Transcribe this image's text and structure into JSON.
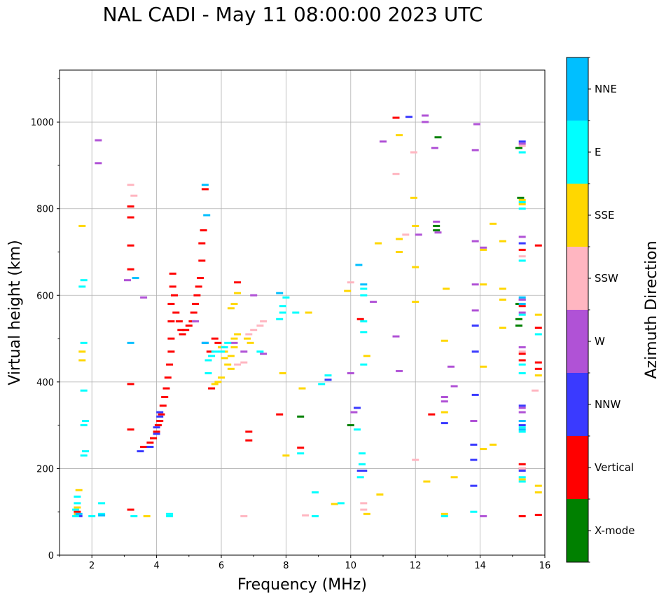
{
  "title": "NAL CADI - May 11 08:00:00 2023 UTC",
  "chart_data": {
    "type": "scatter",
    "title": "NAL CADI - May 11 08:00:00 2023 UTC",
    "xlabel": "Frequency (MHz)",
    "ylabel": "Virtual height (km)",
    "xlim": [
      1,
      16
    ],
    "ylim": [
      0,
      1120
    ],
    "xticks": [
      2,
      4,
      6,
      8,
      10,
      12,
      14,
      16
    ],
    "yticks": [
      0,
      200,
      400,
      600,
      800,
      1000
    ],
    "grid": true,
    "colorbar": {
      "label": "Azimuth Direction",
      "categories": [
        {
          "name": "X-mode",
          "color": "#008000"
        },
        {
          "name": "Vertical",
          "color": "#ff0000"
        },
        {
          "name": "NNW",
          "color": "#3a3aff"
        },
        {
          "name": "W",
          "color": "#b052d6"
        },
        {
          "name": "SSW",
          "color": "#ffb6c1"
        },
        {
          "name": "SSE",
          "color": "#ffd700"
        },
        {
          "name": "E",
          "color": "#00ffff"
        },
        {
          "name": "NNE",
          "color": "#00bfff"
        }
      ]
    },
    "series": [
      {
        "name": "X-mode",
        "points": [
          [
            8.45,
            320
          ],
          [
            10.0,
            300
          ],
          [
            12.65,
            760
          ],
          [
            12.65,
            750
          ],
          [
            12.7,
            965
          ],
          [
            15.2,
            530
          ],
          [
            15.2,
            545
          ],
          [
            15.2,
            940
          ],
          [
            15.25,
            825
          ],
          [
            15.2,
            580
          ]
        ]
      },
      {
        "name": "Vertical",
        "points": [
          [
            1.55,
            100
          ],
          [
            3.2,
            105
          ],
          [
            3.2,
            290
          ],
          [
            3.2,
            395
          ],
          [
            3.2,
            660
          ],
          [
            3.2,
            715
          ],
          [
            3.2,
            780
          ],
          [
            3.2,
            805
          ],
          [
            3.6,
            250
          ],
          [
            3.8,
            260
          ],
          [
            3.9,
            270
          ],
          [
            4.0,
            285
          ],
          [
            4.05,
            300
          ],
          [
            4.1,
            310
          ],
          [
            4.15,
            325
          ],
          [
            4.2,
            345
          ],
          [
            4.25,
            365
          ],
          [
            4.3,
            385
          ],
          [
            4.35,
            410
          ],
          [
            4.4,
            440
          ],
          [
            4.45,
            470
          ],
          [
            4.45,
            500
          ],
          [
            4.45,
            540
          ],
          [
            4.45,
            580
          ],
          [
            4.5,
            620
          ],
          [
            4.5,
            650
          ],
          [
            4.55,
            600
          ],
          [
            4.6,
            560
          ],
          [
            4.7,
            540
          ],
          [
            4.75,
            520
          ],
          [
            4.8,
            510
          ],
          [
            4.9,
            520
          ],
          [
            5.0,
            530
          ],
          [
            5.1,
            540
          ],
          [
            5.15,
            560
          ],
          [
            5.2,
            580
          ],
          [
            5.25,
            600
          ],
          [
            5.3,
            620
          ],
          [
            5.35,
            640
          ],
          [
            5.4,
            680
          ],
          [
            5.4,
            720
          ],
          [
            5.45,
            750
          ],
          [
            5.5,
            845
          ],
          [
            5.65,
            470
          ],
          [
            5.7,
            385
          ],
          [
            5.8,
            500
          ],
          [
            5.9,
            490
          ],
          [
            6.0,
            480
          ],
          [
            6.5,
            630
          ],
          [
            6.85,
            285
          ],
          [
            6.85,
            265
          ],
          [
            7.8,
            325
          ],
          [
            8.45,
            248
          ],
          [
            10.3,
            545
          ],
          [
            11.4,
            1010
          ],
          [
            12.5,
            325
          ],
          [
            15.3,
            90
          ],
          [
            15.3,
            200
          ],
          [
            15.3,
            210
          ],
          [
            15.3,
            575
          ],
          [
            15.3,
            705
          ],
          [
            15.3,
            465
          ],
          [
            15.3,
            450
          ],
          [
            15.8,
            93
          ],
          [
            15.8,
            430
          ],
          [
            15.8,
            445
          ],
          [
            15.8,
            525
          ],
          [
            15.8,
            715
          ]
        ]
      },
      {
        "name": "NNW",
        "points": [
          [
            1.6,
            90
          ],
          [
            3.5,
            240
          ],
          [
            3.8,
            250
          ],
          [
            4.0,
            280
          ],
          [
            4.0,
            295
          ],
          [
            4.1,
            320
          ],
          [
            4.1,
            330
          ],
          [
            5.5,
            490
          ],
          [
            9.3,
            405
          ],
          [
            10.2,
            340
          ],
          [
            10.3,
            195
          ],
          [
            10.4,
            195
          ],
          [
            11.8,
            1012
          ],
          [
            12.9,
            305
          ],
          [
            13.8,
            160
          ],
          [
            13.8,
            220
          ],
          [
            13.8,
            255
          ],
          [
            13.85,
            470
          ],
          [
            13.85,
            530
          ],
          [
            13.85,
            370
          ],
          [
            15.3,
            300
          ],
          [
            15.3,
            345
          ],
          [
            15.3,
            590
          ],
          [
            15.3,
            720
          ],
          [
            15.3,
            955
          ],
          [
            15.3,
            195
          ]
        ]
      },
      {
        "name": "W",
        "points": [
          [
            2.2,
            905
          ],
          [
            2.2,
            958
          ],
          [
            3.1,
            635
          ],
          [
            3.6,
            595
          ],
          [
            5.2,
            540
          ],
          [
            6.4,
            490
          ],
          [
            6.7,
            470
          ],
          [
            7.0,
            600
          ],
          [
            7.3,
            465
          ],
          [
            10.0,
            420
          ],
          [
            10.1,
            330
          ],
          [
            10.7,
            585
          ],
          [
            11.0,
            955
          ],
          [
            11.4,
            505
          ],
          [
            11.5,
            425
          ],
          [
            12.1,
            740
          ],
          [
            12.3,
            1000
          ],
          [
            12.3,
            1015
          ],
          [
            12.6,
            940
          ],
          [
            12.65,
            770
          ],
          [
            12.7,
            745
          ],
          [
            13.1,
            435
          ],
          [
            13.2,
            390
          ],
          [
            12.9,
            355
          ],
          [
            12.9,
            365
          ],
          [
            13.8,
            310
          ],
          [
            13.85,
            625
          ],
          [
            13.85,
            565
          ],
          [
            13.85,
            725
          ],
          [
            13.85,
            935
          ],
          [
            13.9,
            995
          ],
          [
            14.1,
            710
          ],
          [
            14.1,
            90
          ],
          [
            15.3,
            330
          ],
          [
            15.3,
            340
          ],
          [
            15.3,
            560
          ],
          [
            15.3,
            735
          ],
          [
            15.3,
            480
          ],
          [
            15.3,
            950
          ],
          [
            15.3,
            590
          ]
        ]
      },
      {
        "name": "SSW",
        "points": [
          [
            3.2,
            855
          ],
          [
            3.3,
            830
          ],
          [
            6.5,
            440
          ],
          [
            6.7,
            445
          ],
          [
            6.85,
            510
          ],
          [
            7.0,
            520
          ],
          [
            7.2,
            530
          ],
          [
            7.3,
            540
          ],
          [
            6.7,
            90
          ],
          [
            8.6,
            92
          ],
          [
            10.0,
            630
          ],
          [
            10.4,
            105
          ],
          [
            10.4,
            120
          ],
          [
            11.4,
            880
          ],
          [
            11.7,
            740
          ],
          [
            11.95,
            930
          ],
          [
            12.0,
            220
          ],
          [
            15.3,
            200
          ],
          [
            15.3,
            690
          ],
          [
            15.3,
            945
          ],
          [
            15.3,
            470
          ],
          [
            15.7,
            380
          ]
        ]
      },
      {
        "name": "SSE",
        "points": [
          [
            1.55,
            95
          ],
          [
            1.55,
            110
          ],
          [
            1.6,
            150
          ],
          [
            1.7,
            760
          ],
          [
            1.7,
            470
          ],
          [
            1.7,
            450
          ],
          [
            3.7,
            90
          ],
          [
            6.0,
            480
          ],
          [
            6.1,
            470
          ],
          [
            6.1,
            455
          ],
          [
            6.2,
            440
          ],
          [
            6.3,
            430
          ],
          [
            6.3,
            460
          ],
          [
            6.4,
            480
          ],
          [
            6.4,
            500
          ],
          [
            6.5,
            510
          ],
          [
            6.0,
            410
          ],
          [
            5.9,
            400
          ],
          [
            5.8,
            395
          ],
          [
            6.3,
            570
          ],
          [
            6.4,
            580
          ],
          [
            6.5,
            605
          ],
          [
            6.8,
            500
          ],
          [
            6.9,
            490
          ],
          [
            7.9,
            420
          ],
          [
            8.0,
            230
          ],
          [
            8.5,
            385
          ],
          [
            8.7,
            560
          ],
          [
            9.5,
            118
          ],
          [
            9.9,
            610
          ],
          [
            10.5,
            95
          ],
          [
            10.5,
            460
          ],
          [
            10.85,
            720
          ],
          [
            10.9,
            140
          ],
          [
            11.5,
            700
          ],
          [
            11.5,
            730
          ],
          [
            11.5,
            970
          ],
          [
            11.95,
            825
          ],
          [
            12.0,
            760
          ],
          [
            12.0,
            665
          ],
          [
            12.0,
            585
          ],
          [
            12.35,
            170
          ],
          [
            12.9,
            95
          ],
          [
            12.9,
            330
          ],
          [
            12.9,
            495
          ],
          [
            12.95,
            615
          ],
          [
            13.2,
            180
          ],
          [
            14.1,
            245
          ],
          [
            14.1,
            435
          ],
          [
            14.1,
            625
          ],
          [
            14.1,
            705
          ],
          [
            14.4,
            255
          ],
          [
            14.4,
            765
          ],
          [
            14.7,
            525
          ],
          [
            14.7,
            590
          ],
          [
            14.7,
            615
          ],
          [
            14.7,
            725
          ],
          [
            15.3,
            810
          ],
          [
            15.3,
            820
          ],
          [
            15.3,
            175
          ],
          [
            15.8,
            145
          ],
          [
            15.8,
            160
          ],
          [
            15.8,
            415
          ],
          [
            15.8,
            555
          ]
        ]
      },
      {
        "name": "E",
        "points": [
          [
            1.5,
            90
          ],
          [
            1.5,
            105
          ],
          [
            1.55,
            120
          ],
          [
            1.55,
            135
          ],
          [
            1.75,
            230
          ],
          [
            1.8,
            240
          ],
          [
            1.75,
            300
          ],
          [
            1.8,
            310
          ],
          [
            1.75,
            380
          ],
          [
            1.75,
            490
          ],
          [
            1.7,
            620
          ],
          [
            1.75,
            635
          ],
          [
            2.0,
            90
          ],
          [
            2.3,
            95
          ],
          [
            2.3,
            120
          ],
          [
            3.3,
            90
          ],
          [
            4.4,
            90
          ],
          [
            4.4,
            95
          ],
          [
            5.6,
            420
          ],
          [
            5.6,
            450
          ],
          [
            5.7,
            460
          ],
          [
            5.8,
            470
          ],
          [
            6.0,
            470
          ],
          [
            6.1,
            480
          ],
          [
            6.2,
            490
          ],
          [
            7.2,
            470
          ],
          [
            7.8,
            545
          ],
          [
            7.9,
            560
          ],
          [
            7.9,
            575
          ],
          [
            8.0,
            595
          ],
          [
            8.3,
            560
          ],
          [
            8.45,
            235
          ],
          [
            8.9,
            90
          ],
          [
            8.9,
            145
          ],
          [
            9.1,
            395
          ],
          [
            9.3,
            415
          ],
          [
            9.7,
            120
          ],
          [
            10.2,
            290
          ],
          [
            10.3,
            180
          ],
          [
            10.35,
            210
          ],
          [
            10.35,
            235
          ],
          [
            10.4,
            440
          ],
          [
            10.4,
            515
          ],
          [
            10.4,
            540
          ],
          [
            10.4,
            600
          ],
          [
            10.4,
            615
          ],
          [
            12.9,
            90
          ],
          [
            13.8,
            100
          ],
          [
            15.3,
            170
          ],
          [
            15.3,
            180
          ],
          [
            15.3,
            285
          ],
          [
            15.3,
            295
          ],
          [
            15.3,
            420
          ],
          [
            15.3,
            440
          ],
          [
            15.3,
            555
          ],
          [
            15.3,
            680
          ],
          [
            15.3,
            800
          ],
          [
            15.3,
            815
          ],
          [
            15.3,
            930
          ],
          [
            15.8,
            510
          ]
        ]
      },
      {
        "name": "NNE",
        "points": [
          [
            1.6,
            95
          ],
          [
            2.3,
            92
          ],
          [
            3.35,
            640
          ],
          [
            3.2,
            490
          ],
          [
            5.5,
            490
          ],
          [
            5.5,
            855
          ],
          [
            5.55,
            785
          ],
          [
            7.8,
            605
          ],
          [
            10.25,
            670
          ],
          [
            10.4,
            625
          ],
          [
            15.3,
            290
          ],
          [
            15.3,
            310
          ],
          [
            15.3,
            580
          ],
          [
            15.3,
            595
          ]
        ]
      }
    ]
  }
}
